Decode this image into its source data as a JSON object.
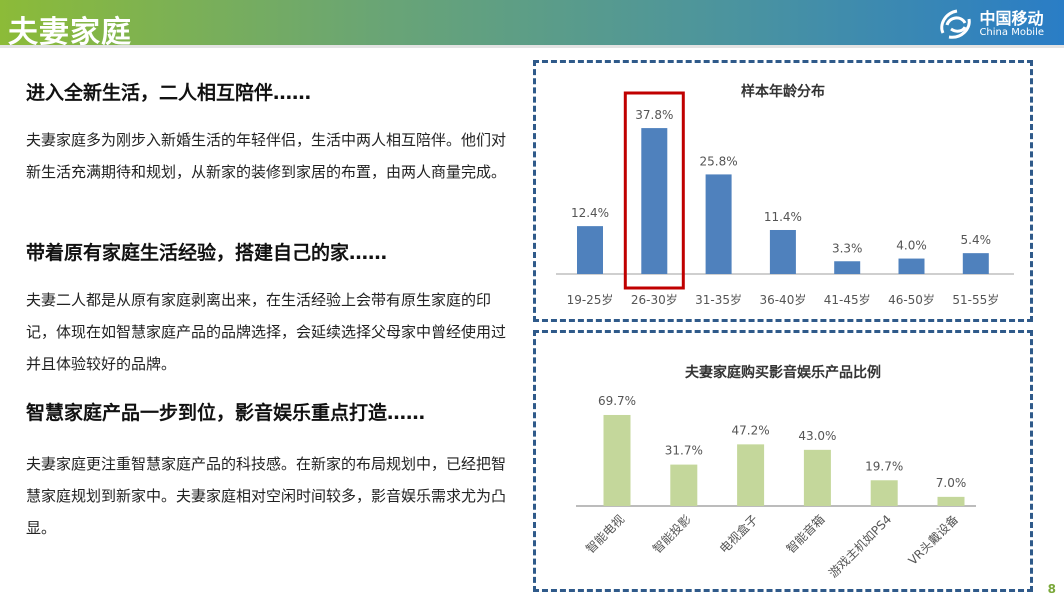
{
  "header": {
    "title": "夫妻家庭",
    "logo_cn": "中国移动",
    "logo_en": "China Mobile"
  },
  "sections": [
    {
      "heading": "进入全新生活，二人相互陪伴……",
      "body": "夫妻家庭多为刚步入新婚生活的年轻伴侣，生活中两人相互陪伴。他们对新生活充满期待和规划，从新家的装修到家居的布置，由两人商量完成。"
    },
    {
      "heading": "带着原有家庭生活经验，搭建自己的家……",
      "body": "夫妻二人都是从原有家庭剥离出来，在生活经验上会带有原生家庭的印记，体现在如智慧家庭产品的品牌选择，会延续选择父母家中曾经使用过并且体验较好的品牌。"
    },
    {
      "heading": "智慧家庭产品一步到位，影音娱乐重点打造……",
      "body": "夫妻家庭更注重智慧家庭产品的科技感。在新家的布局规划中，已经把智慧家庭规划到新家中。夫妻家庭相对空闲时间较多，影音娱乐需求尤为凸显。"
    }
  ],
  "page_number": "8",
  "chart_data": [
    {
      "type": "bar",
      "title": "样本年龄分布",
      "categories": [
        "19-25岁",
        "26-30岁",
        "31-35岁",
        "36-40岁",
        "41-45岁",
        "46-50岁",
        "51-55岁"
      ],
      "values": [
        12.4,
        37.8,
        25.8,
        11.4,
        3.3,
        4.0,
        5.4
      ],
      "labels": [
        "12.4%",
        "37.8%",
        "25.8%",
        "11.4%",
        "3.3%",
        "4.0%",
        "5.4%"
      ],
      "color": "#4f81bd",
      "highlight_index": 1,
      "highlight_color": "#c00000"
    },
    {
      "type": "bar",
      "title": "夫妻家庭购买影音娱乐产品比例",
      "categories": [
        "智能电视",
        "智能投影",
        "电视盒子",
        "智能音箱",
        "游戏主机如PS4",
        "VR头戴设备"
      ],
      "values": [
        69.7,
        31.7,
        47.2,
        43.0,
        19.7,
        7.0
      ],
      "labels": [
        "69.7%",
        "31.7%",
        "47.2%",
        "43.0%",
        "19.7%",
        "7.0%"
      ],
      "color": "#c4d79b"
    }
  ]
}
